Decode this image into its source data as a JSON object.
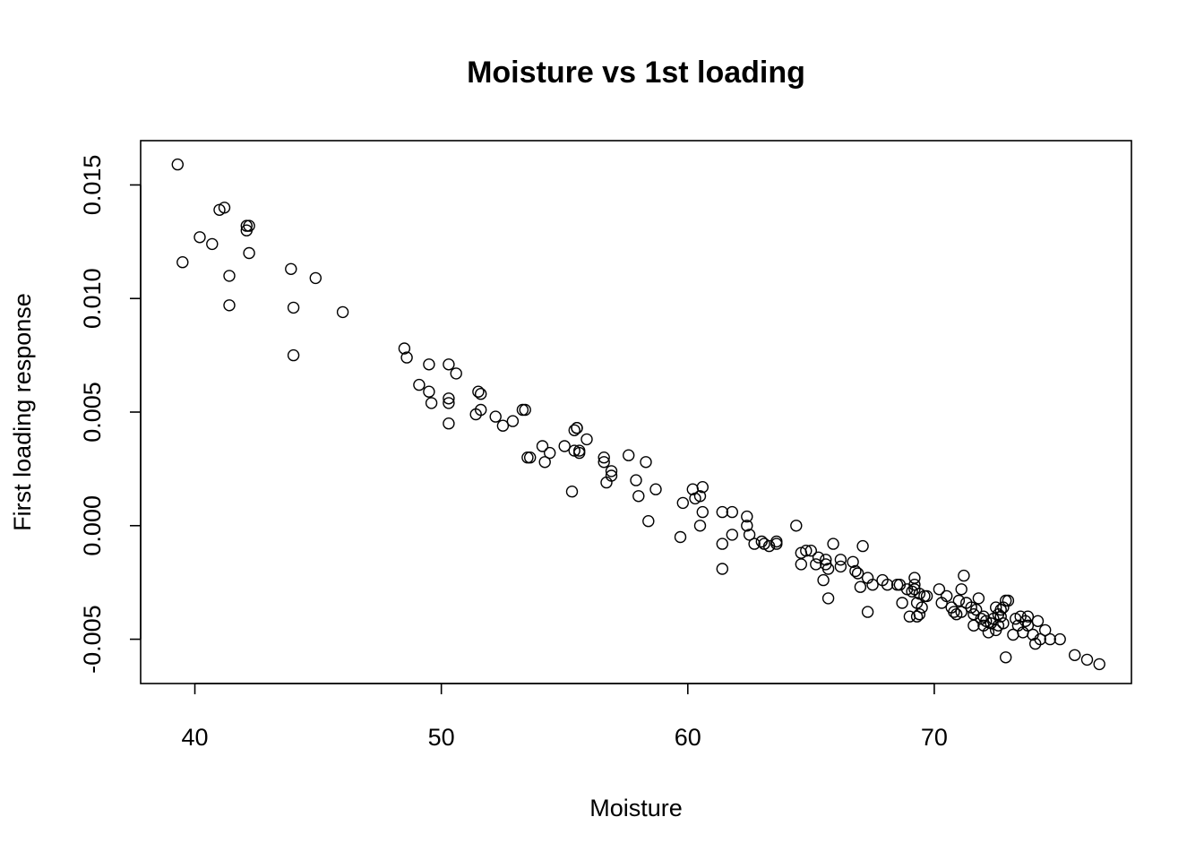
{
  "chart_data": {
    "type": "scatter",
    "title": "Moisture vs 1st loading",
    "xlabel": "Moisture",
    "ylabel": "First loading response",
    "xlim": [
      37.8,
      78.0
    ],
    "ylim": [
      -0.00695,
      0.01695
    ],
    "x_ticks": [
      40,
      50,
      60,
      70
    ],
    "x_tick_labels": [
      "40",
      "50",
      "60",
      "70"
    ],
    "y_ticks": [
      -0.005,
      0.0,
      0.005,
      0.01,
      0.015
    ],
    "y_tick_labels": [
      "-0.005",
      "0.000",
      "0.005",
      "0.010",
      "0.015"
    ],
    "grid": false,
    "marker": "open-circle",
    "points": [
      [
        39.3,
        0.0159
      ],
      [
        39.5,
        0.0116
      ],
      [
        40.2,
        0.0127
      ],
      [
        40.7,
        0.0124
      ],
      [
        41.0,
        0.0139
      ],
      [
        41.2,
        0.014
      ],
      [
        41.4,
        0.011
      ],
      [
        41.4,
        0.0097
      ],
      [
        42.1,
        0.013
      ],
      [
        42.1,
        0.0132
      ],
      [
        42.2,
        0.0132
      ],
      [
        42.2,
        0.012
      ],
      [
        43.9,
        0.0113
      ],
      [
        44.0,
        0.0096
      ],
      [
        44.0,
        0.0075
      ],
      [
        44.9,
        0.0109
      ],
      [
        46.0,
        0.0094
      ],
      [
        48.5,
        0.0078
      ],
      [
        48.6,
        0.0074
      ],
      [
        49.1,
        0.0062
      ],
      [
        49.5,
        0.0071
      ],
      [
        49.5,
        0.0059
      ],
      [
        49.6,
        0.0054
      ],
      [
        50.3,
        0.0071
      ],
      [
        50.3,
        0.0056
      ],
      [
        50.3,
        0.0054
      ],
      [
        50.3,
        0.0045
      ],
      [
        50.6,
        0.0067
      ],
      [
        51.4,
        0.0049
      ],
      [
        51.5,
        0.0059
      ],
      [
        51.6,
        0.0058
      ],
      [
        51.6,
        0.0051
      ],
      [
        52.2,
        0.0048
      ],
      [
        52.5,
        0.0044
      ],
      [
        52.9,
        0.0046
      ],
      [
        53.3,
        0.0051
      ],
      [
        53.4,
        0.0051
      ],
      [
        53.5,
        0.003
      ],
      [
        53.6,
        0.003
      ],
      [
        54.1,
        0.0035
      ],
      [
        54.2,
        0.0028
      ],
      [
        54.4,
        0.0032
      ],
      [
        55.0,
        0.0035
      ],
      [
        55.3,
        0.0015
      ],
      [
        55.4,
        0.0033
      ],
      [
        55.4,
        0.0042
      ],
      [
        55.5,
        0.0043
      ],
      [
        55.5,
        0.0043
      ],
      [
        55.6,
        0.0032
      ],
      [
        55.6,
        0.0033
      ],
      [
        55.9,
        0.0038
      ],
      [
        56.6,
        0.003
      ],
      [
        56.6,
        0.0028
      ],
      [
        56.7,
        0.0019
      ],
      [
        56.9,
        0.0024
      ],
      [
        56.9,
        0.0022
      ],
      [
        57.6,
        0.0031
      ],
      [
        57.9,
        0.002
      ],
      [
        58.0,
        0.0013
      ],
      [
        58.3,
        0.0028
      ],
      [
        58.4,
        0.0002
      ],
      [
        58.7,
        0.0016
      ],
      [
        59.7,
        -0.0005
      ],
      [
        59.8,
        0.001
      ],
      [
        60.2,
        0.0016
      ],
      [
        60.3,
        0.0012
      ],
      [
        60.5,
        0.0013
      ],
      [
        60.5,
        0.0
      ],
      [
        60.6,
        0.0017
      ],
      [
        60.6,
        0.0006
      ],
      [
        61.4,
        0.0006
      ],
      [
        61.4,
        -0.0008
      ],
      [
        61.4,
        -0.0019
      ],
      [
        61.8,
        0.0006
      ],
      [
        61.8,
        -0.0004
      ],
      [
        62.4,
        0.0004
      ],
      [
        62.4,
        0.0
      ],
      [
        62.5,
        -0.0004
      ],
      [
        62.7,
        -0.0008
      ],
      [
        63.0,
        -0.0007
      ],
      [
        63.1,
        -0.0008
      ],
      [
        63.3,
        -0.0009
      ],
      [
        63.6,
        -0.0008
      ],
      [
        63.6,
        -0.0007
      ],
      [
        64.4,
        0.0
      ],
      [
        64.6,
        -0.0012
      ],
      [
        64.6,
        -0.0017
      ],
      [
        64.8,
        -0.0011
      ],
      [
        65.0,
        -0.0011
      ],
      [
        65.2,
        -0.0017
      ],
      [
        65.3,
        -0.0014
      ],
      [
        65.5,
        -0.0024
      ],
      [
        65.6,
        -0.0015
      ],
      [
        65.6,
        -0.0017
      ],
      [
        65.7,
        -0.0019
      ],
      [
        65.7,
        -0.0032
      ],
      [
        65.9,
        -0.0008
      ],
      [
        66.2,
        -0.0015
      ],
      [
        66.2,
        -0.0018
      ],
      [
        66.7,
        -0.0016
      ],
      [
        66.8,
        -0.002
      ],
      [
        66.9,
        -0.0021
      ],
      [
        67.0,
        -0.0027
      ],
      [
        67.1,
        -0.0009
      ],
      [
        67.3,
        -0.0023
      ],
      [
        67.3,
        -0.0038
      ],
      [
        67.5,
        -0.0026
      ],
      [
        67.9,
        -0.0024
      ],
      [
        68.1,
        -0.0026
      ],
      [
        68.5,
        -0.0026
      ],
      [
        68.6,
        -0.0026
      ],
      [
        68.7,
        -0.0034
      ],
      [
        68.9,
        -0.0028
      ],
      [
        69.0,
        -0.004
      ],
      [
        69.1,
        -0.0029
      ],
      [
        69.2,
        -0.0026
      ],
      [
        69.2,
        -0.0023
      ],
      [
        69.2,
        -0.0028
      ],
      [
        69.3,
        -0.004
      ],
      [
        69.3,
        -0.0034
      ],
      [
        69.4,
        -0.003
      ],
      [
        69.4,
        -0.0039
      ],
      [
        69.5,
        -0.0036
      ],
      [
        69.6,
        -0.0031
      ],
      [
        69.7,
        -0.0031
      ],
      [
        70.2,
        -0.0028
      ],
      [
        70.3,
        -0.0034
      ],
      [
        70.5,
        -0.0031
      ],
      [
        70.7,
        -0.0036
      ],
      [
        70.8,
        -0.0038
      ],
      [
        70.9,
        -0.0039
      ],
      [
        71.0,
        -0.0033
      ],
      [
        71.1,
        -0.0028
      ],
      [
        71.1,
        -0.0038
      ],
      [
        71.2,
        -0.0022
      ],
      [
        71.3,
        -0.0034
      ],
      [
        71.5,
        -0.0036
      ],
      [
        71.6,
        -0.0039
      ],
      [
        71.6,
        -0.0044
      ],
      [
        71.7,
        -0.0037
      ],
      [
        71.8,
        -0.0032
      ],
      [
        71.9,
        -0.0041
      ],
      [
        72.0,
        -0.004
      ],
      [
        72.0,
        -0.0044
      ],
      [
        72.1,
        -0.0042
      ],
      [
        72.2,
        -0.0047
      ],
      [
        72.3,
        -0.0043
      ],
      [
        72.4,
        -0.0041
      ],
      [
        72.5,
        -0.0036
      ],
      [
        72.5,
        -0.0046
      ],
      [
        72.6,
        -0.0044
      ],
      [
        72.6,
        -0.0039
      ],
      [
        72.7,
        -0.0037
      ],
      [
        72.7,
        -0.004
      ],
      [
        72.8,
        -0.0036
      ],
      [
        72.8,
        -0.0043
      ],
      [
        72.9,
        -0.0033
      ],
      [
        72.9,
        -0.0058
      ],
      [
        73.0,
        -0.0033
      ],
      [
        73.2,
        -0.0048
      ],
      [
        73.3,
        -0.0041
      ],
      [
        73.4,
        -0.0044
      ],
      [
        73.5,
        -0.004
      ],
      [
        73.6,
        -0.0047
      ],
      [
        73.7,
        -0.0042
      ],
      [
        73.8,
        -0.0044
      ],
      [
        73.8,
        -0.004
      ],
      [
        74.0,
        -0.0048
      ],
      [
        74.1,
        -0.0052
      ],
      [
        74.2,
        -0.0042
      ],
      [
        74.3,
        -0.005
      ],
      [
        74.5,
        -0.0046
      ],
      [
        74.7,
        -0.005
      ],
      [
        75.1,
        -0.005
      ],
      [
        75.7,
        -0.0057
      ],
      [
        76.2,
        -0.0059
      ],
      [
        76.7,
        -0.0061
      ]
    ]
  }
}
